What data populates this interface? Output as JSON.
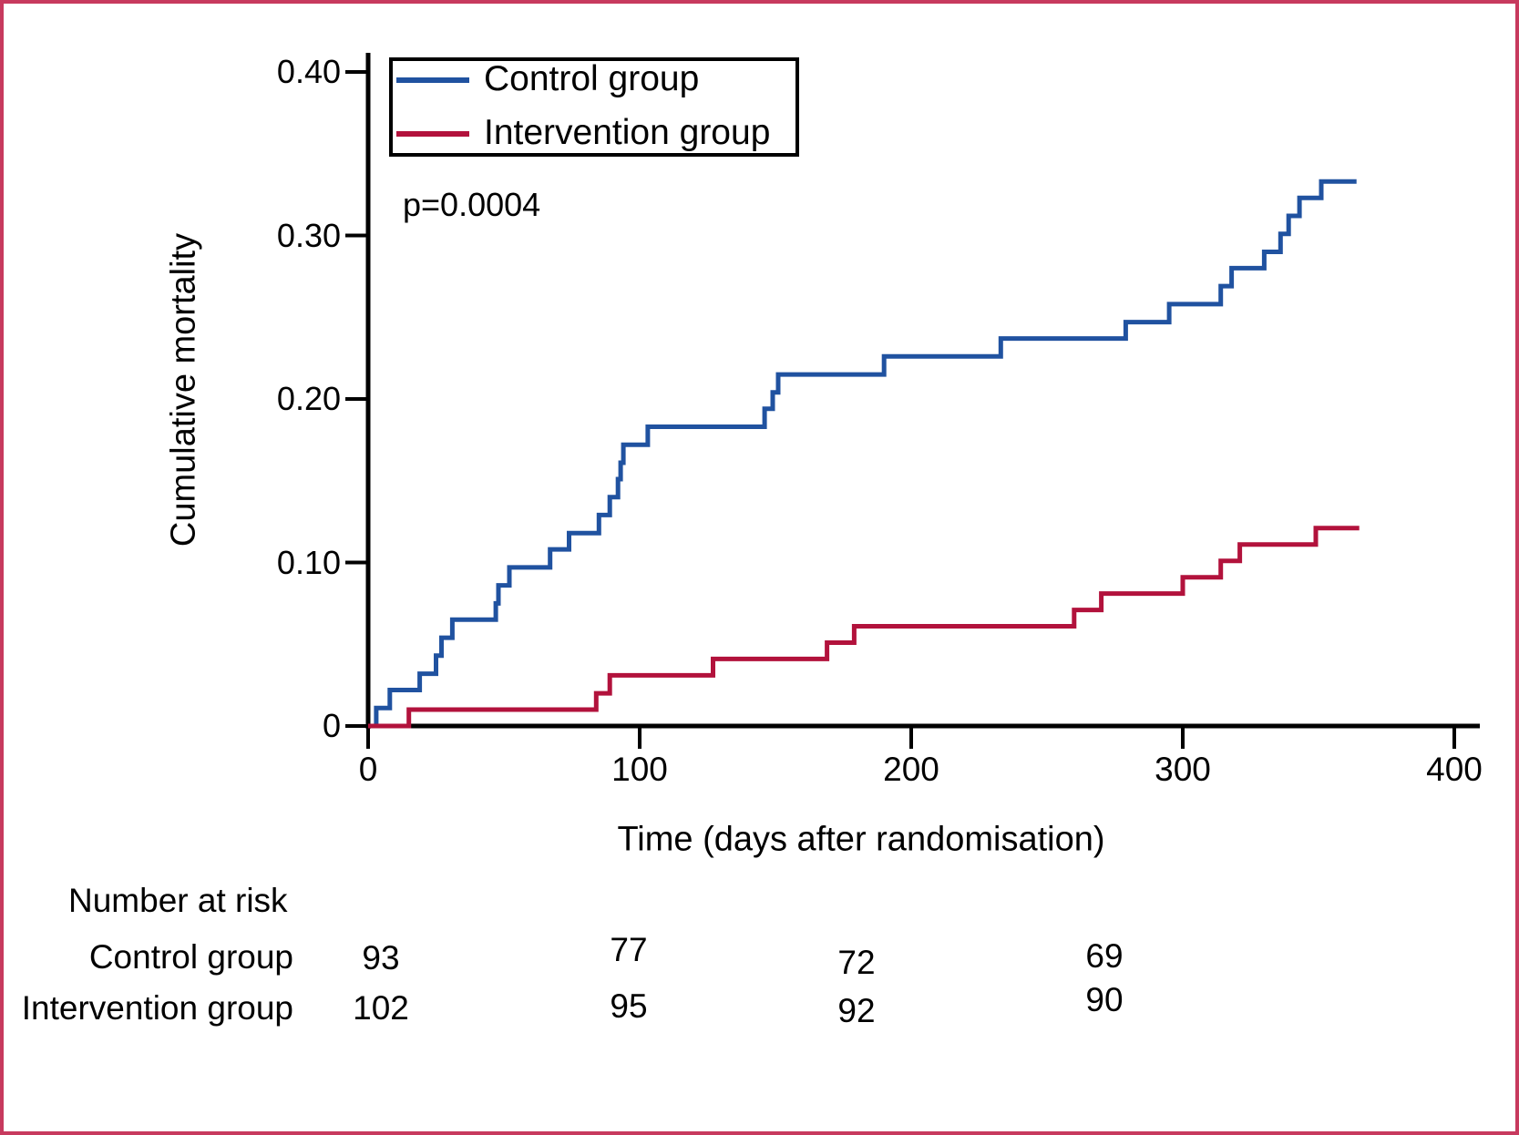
{
  "figure": {
    "border_color": "#c73a5e",
    "background": "#ffffff",
    "axis_color": "#000000"
  },
  "chart_data": {
    "type": "line",
    "variant": "kaplan-meier-cumulative-incidence-step",
    "title": "",
    "xlabel": "Time (days after randomisation)",
    "ylabel": "Cumulative mortality",
    "xlim": [
      0,
      410
    ],
    "ylim": [
      0,
      0.4
    ],
    "grid": "off",
    "legend_position": "top-left-inside",
    "annotation": "p=0.0004",
    "x_ticks": [
      {
        "value": 0,
        "label": "0"
      },
      {
        "value": 100,
        "label": "100"
      },
      {
        "value": 200,
        "label": "200"
      },
      {
        "value": 300,
        "label": "300"
      },
      {
        "value": 400,
        "label": "400"
      }
    ],
    "y_ticks": [
      {
        "value": 0.4,
        "label": "0.40"
      },
      {
        "value": 0.3,
        "label": "0.30"
      },
      {
        "value": 0.2,
        "label": "0.20"
      },
      {
        "value": 0.1,
        "label": "0.10"
      },
      {
        "value": 0,
        "label": "0"
      }
    ],
    "series": [
      {
        "name": "Control group",
        "color": "#2052a0",
        "start": {
          "day": 0,
          "value": 0
        },
        "step_days": [
          3,
          8,
          19,
          25,
          27,
          31,
          47,
          48,
          52,
          67,
          74,
          85,
          89,
          92,
          93,
          94,
          103,
          146,
          149,
          151,
          190,
          233,
          279,
          295,
          314,
          318,
          330,
          336,
          339,
          343,
          351
        ],
        "step_values": [
          0.011,
          0.022,
          0.032,
          0.043,
          0.054,
          0.065,
          0.075,
          0.086,
          0.097,
          0.108,
          0.118,
          0.129,
          0.14,
          0.151,
          0.161,
          0.172,
          0.183,
          0.194,
          0.204,
          0.215,
          0.226,
          0.237,
          0.247,
          0.258,
          0.269,
          0.28,
          0.29,
          0.301,
          0.312,
          0.323,
          0.333
        ],
        "end_day": 364
      },
      {
        "name": "Intervention group",
        "color": "#b2123c",
        "start": {
          "day": 0,
          "value": 0
        },
        "step_days": [
          15,
          84,
          89,
          127,
          169,
          179,
          260,
          270,
          300,
          314,
          321,
          349
        ],
        "step_values": [
          0.01,
          0.02,
          0.031,
          0.041,
          0.051,
          0.061,
          0.071,
          0.081,
          0.091,
          0.101,
          0.111,
          0.121
        ],
        "end_day": 365
      }
    ],
    "number_at_risk": {
      "header": "Number at risk",
      "time_points": [
        0,
        100,
        200,
        300
      ],
      "rows": [
        {
          "label": "Control group",
          "values": [
            "93",
            "77",
            "72",
            "69"
          ]
        },
        {
          "label": "Intervention group",
          "values": [
            "102",
            "95",
            "92",
            "90"
          ]
        }
      ]
    }
  }
}
